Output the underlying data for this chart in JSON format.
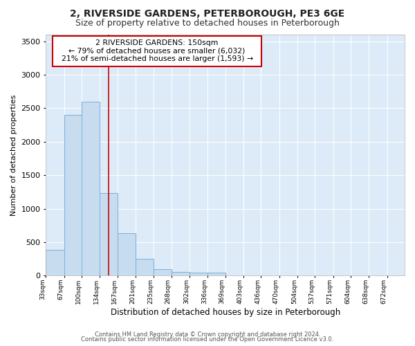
{
  "title": "2, RIVERSIDE GARDENS, PETERBOROUGH, PE3 6GE",
  "subtitle": "Size of property relative to detached houses in Peterborough",
  "xlabel": "Distribution of detached houses by size in Peterborough",
  "ylabel": "Number of detached properties",
  "footer_line1": "Contains HM Land Registry data © Crown copyright and database right 2024.",
  "footer_line2": "Contains public sector information licensed under the Open Government Licence v3.0.",
  "annotation_line1": "2 RIVERSIDE GARDENS: 150sqm",
  "annotation_line2": "← 79% of detached houses are smaller (6,032)",
  "annotation_line3": "21% of semi-detached houses are larger (1,593) →",
  "bar_edges": [
    33,
    67,
    100,
    134,
    167,
    201,
    235,
    268,
    302,
    336,
    369,
    403,
    436,
    470,
    504,
    537,
    571,
    604,
    638,
    672,
    705
  ],
  "bar_heights": [
    390,
    2400,
    2600,
    1230,
    630,
    250,
    100,
    55,
    50,
    50,
    0,
    0,
    0,
    0,
    0,
    0,
    0,
    0,
    0,
    0
  ],
  "bar_color": "#c8dcf0",
  "bar_edge_color": "#7ab0d8",
  "vline_x": 150,
  "vline_color": "#cc0000",
  "ylim": [
    0,
    3600
  ],
  "yticks": [
    0,
    500,
    1000,
    1500,
    2000,
    2500,
    3000,
    3500
  ],
  "bg_color": "#ffffff",
  "plot_bg_color": "#ddeaf8",
  "grid_color": "#ffffff",
  "annotation_box_color": "#cc0000",
  "annotation_box_fill": "#ffffff",
  "title_fontsize": 10,
  "subtitle_fontsize": 9
}
